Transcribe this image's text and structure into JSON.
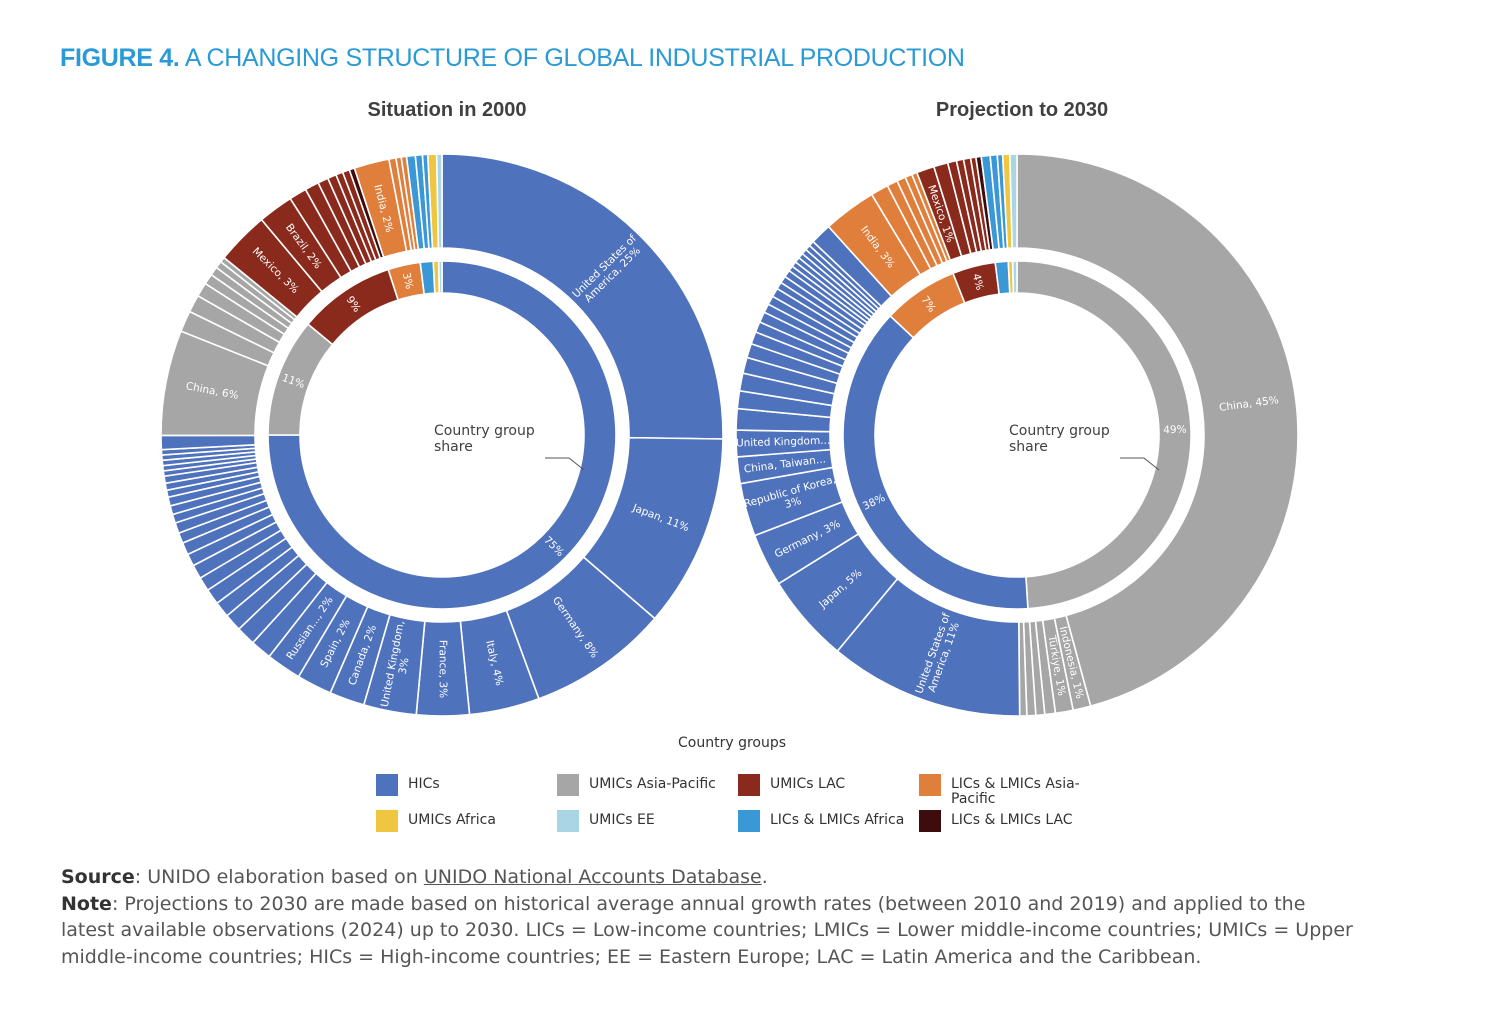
{
  "figure": {
    "label": "FIGURE 4.",
    "title": "A CHANGING STRUCTURE OF GLOBAL INDUSTRIAL PRODUCTION"
  },
  "colors": {
    "HICs": "#4f72bd",
    "UMICs Asia-Pacific": "#a6a6a6",
    "UMICs LAC": "#8a2a1c",
    "LICs & LMICs Asia-Pacific": "#e07f3c",
    "UMICs Africa": "#f0c640",
    "UMICs EE": "#a9d5e5",
    "LICs & LMICs Africa": "#3b98d6",
    "LICs & LMICs LAC": "#3d0d0d"
  },
  "chart_data": [
    {
      "type": "pie",
      "subtype": "nested-donut",
      "title": "Situation in 2000",
      "center_label": "Country group share",
      "inner_ring": [
        {
          "group": "HICs",
          "value": 75,
          "label": "75%"
        },
        {
          "group": "UMICs Asia-Pacific",
          "value": 11,
          "label": "11%"
        },
        {
          "group": "UMICs LAC",
          "value": 9,
          "label": "9%"
        },
        {
          "group": "LICs & LMICs Asia-Pacific",
          "value": 3,
          "label": "3%"
        },
        {
          "group": "LICs & LMICs Africa",
          "value": 1.2,
          "label": ""
        },
        {
          "group": "UMICs Africa",
          "value": 0.5,
          "label": ""
        },
        {
          "group": "UMICs EE",
          "value": 0.3,
          "label": ""
        }
      ],
      "outer_ring": [
        {
          "group": "HICs",
          "value": 25,
          "label": "United States of America, 25%"
        },
        {
          "group": "HICs",
          "value": 11,
          "label": "Japan, 11%"
        },
        {
          "group": "HICs",
          "value": 8,
          "label": "Germany, 8%"
        },
        {
          "group": "HICs",
          "value": 4,
          "label": "Italy, 4%"
        },
        {
          "group": "HICs",
          "value": 3,
          "label": "France, 3%"
        },
        {
          "group": "HICs",
          "value": 3,
          "label": "United Kingdom, 3%"
        },
        {
          "group": "HICs",
          "value": 2,
          "label": "Canada, 2%"
        },
        {
          "group": "HICs",
          "value": 2,
          "label": "Spain, 2%"
        },
        {
          "group": "HICs",
          "value": 2,
          "label": "Russian..., 2%"
        },
        {
          "group": "HICs",
          "value": 1.2,
          "label": ""
        },
        {
          "group": "HICs",
          "value": 1.1,
          "label": ""
        },
        {
          "group": "HICs",
          "value": 1.0,
          "label": ""
        },
        {
          "group": "HICs",
          "value": 0.9,
          "label": ""
        },
        {
          "group": "HICs",
          "value": 0.9,
          "label": ""
        },
        {
          "group": "HICs",
          "value": 0.8,
          "label": ""
        },
        {
          "group": "HICs",
          "value": 0.8,
          "label": ""
        },
        {
          "group": "HICs",
          "value": 0.7,
          "label": ""
        },
        {
          "group": "HICs",
          "value": 0.7,
          "label": ""
        },
        {
          "group": "HICs",
          "value": 0.6,
          "label": ""
        },
        {
          "group": "HICs",
          "value": 0.6,
          "label": ""
        },
        {
          "group": "HICs",
          "value": 0.5,
          "label": ""
        },
        {
          "group": "HICs",
          "value": 0.5,
          "label": ""
        },
        {
          "group": "HICs",
          "value": 0.5,
          "label": ""
        },
        {
          "group": "HICs",
          "value": 0.4,
          "label": ""
        },
        {
          "group": "HICs",
          "value": 0.4,
          "label": ""
        },
        {
          "group": "HICs",
          "value": 0.4,
          "label": ""
        },
        {
          "group": "HICs",
          "value": 0.3,
          "label": ""
        },
        {
          "group": "HICs",
          "value": 0.3,
          "label": ""
        },
        {
          "group": "HICs",
          "value": 0.3,
          "label": ""
        },
        {
          "group": "HICs",
          "value": 0.3,
          "label": ""
        },
        {
          "group": "HICs",
          "value": 0.3,
          "label": ""
        },
        {
          "group": "HICs",
          "value": 0.8,
          "label": ""
        },
        {
          "group": "UMICs Asia-Pacific",
          "value": 6,
          "label": "China, 6%"
        },
        {
          "group": "UMICs Asia-Pacific",
          "value": 1.2,
          "label": ""
        },
        {
          "group": "UMICs Asia-Pacific",
          "value": 1.0,
          "label": ""
        },
        {
          "group": "UMICs Asia-Pacific",
          "value": 0.8,
          "label": ""
        },
        {
          "group": "UMICs Asia-Pacific",
          "value": 0.6,
          "label": ""
        },
        {
          "group": "UMICs Asia-Pacific",
          "value": 0.5,
          "label": ""
        },
        {
          "group": "UMICs Asia-Pacific",
          "value": 0.4,
          "label": ""
        },
        {
          "group": "UMICs Asia-Pacific",
          "value": 0.3,
          "label": ""
        },
        {
          "group": "UMICs LAC",
          "value": 3,
          "label": "Mexico, 3%"
        },
        {
          "group": "UMICs LAC",
          "value": 2,
          "label": "Brazil, 2%"
        },
        {
          "group": "UMICs LAC",
          "value": 1.0,
          "label": ""
        },
        {
          "group": "UMICs LAC",
          "value": 0.8,
          "label": ""
        },
        {
          "group": "UMICs LAC",
          "value": 0.6,
          "label": ""
        },
        {
          "group": "UMICs LAC",
          "value": 0.5,
          "label": ""
        },
        {
          "group": "UMICs LAC",
          "value": 0.4,
          "label": ""
        },
        {
          "group": "UMICs LAC",
          "value": 0.4,
          "label": ""
        },
        {
          "group": "LICs & LMICs LAC",
          "value": 0.3,
          "label": ""
        },
        {
          "group": "LICs & LMICs Asia-Pacific",
          "value": 2,
          "label": "India, 2%"
        },
        {
          "group": "LICs & LMICs Asia-Pacific",
          "value": 0.4,
          "label": ""
        },
        {
          "group": "LICs & LMICs Asia-Pacific",
          "value": 0.3,
          "label": ""
        },
        {
          "group": "LICs & LMICs Asia-Pacific",
          "value": 0.3,
          "label": ""
        },
        {
          "group": "LICs & LMICs Africa",
          "value": 0.5,
          "label": ""
        },
        {
          "group": "LICs & LMICs Africa",
          "value": 0.4,
          "label": ""
        },
        {
          "group": "LICs & LMICs Africa",
          "value": 0.3,
          "label": ""
        },
        {
          "group": "UMICs Africa",
          "value": 0.5,
          "label": ""
        },
        {
          "group": "UMICs EE",
          "value": 0.3,
          "label": ""
        }
      ]
    },
    {
      "type": "pie",
      "subtype": "nested-donut",
      "title": "Projection to 2030",
      "center_label": "Country group share",
      "inner_ring": [
        {
          "group": "UMICs Asia-Pacific",
          "value": 49,
          "label": "49%"
        },
        {
          "group": "HICs",
          "value": 38,
          "label": "38%"
        },
        {
          "group": "LICs & LMICs Asia-Pacific",
          "value": 7,
          "label": "7%"
        },
        {
          "group": "UMICs LAC",
          "value": 4,
          "label": "4%"
        },
        {
          "group": "LICs & LMICs Africa",
          "value": 1.2,
          "label": ""
        },
        {
          "group": "UMICs Africa",
          "value": 0.4,
          "label": ""
        },
        {
          "group": "UMICs EE",
          "value": 0.4,
          "label": ""
        }
      ],
      "outer_ring": [
        {
          "group": "UMICs Asia-Pacific",
          "value": 45,
          "label": "China, 45%"
        },
        {
          "group": "UMICs Asia-Pacific",
          "value": 1,
          "label": "Indonesia, 1%"
        },
        {
          "group": "UMICs Asia-Pacific",
          "value": 1,
          "label": "Türkiye, 1%"
        },
        {
          "group": "UMICs Asia-Pacific",
          "value": 0.6,
          "label": ""
        },
        {
          "group": "UMICs Asia-Pacific",
          "value": 0.5,
          "label": ""
        },
        {
          "group": "UMICs Asia-Pacific",
          "value": 0.5,
          "label": ""
        },
        {
          "group": "UMICs Asia-Pacific",
          "value": 0.4,
          "label": ""
        },
        {
          "group": "HICs",
          "value": 11,
          "label": "United States of America, 11%"
        },
        {
          "group": "HICs",
          "value": 5,
          "label": "Japan, 5%"
        },
        {
          "group": "HICs",
          "value": 3,
          "label": "Germany, 3%"
        },
        {
          "group": "HICs",
          "value": 3,
          "label": "Republic of Korea, 3%"
        },
        {
          "group": "HICs",
          "value": 1.5,
          "label": "China, Taiwan..."
        },
        {
          "group": "HICs",
          "value": 1.5,
          "label": "United Kingdom..."
        },
        {
          "group": "HICs",
          "value": 1.2,
          "label": ""
        },
        {
          "group": "HICs",
          "value": 1.0,
          "label": ""
        },
        {
          "group": "HICs",
          "value": 1.0,
          "label": ""
        },
        {
          "group": "HICs",
          "value": 0.9,
          "label": ""
        },
        {
          "group": "HICs",
          "value": 0.8,
          "label": ""
        },
        {
          "group": "HICs",
          "value": 0.7,
          "label": ""
        },
        {
          "group": "HICs",
          "value": 0.6,
          "label": ""
        },
        {
          "group": "HICs",
          "value": 0.6,
          "label": ""
        },
        {
          "group": "HICs",
          "value": 0.5,
          "label": ""
        },
        {
          "group": "HICs",
          "value": 0.5,
          "label": ""
        },
        {
          "group": "HICs",
          "value": 0.5,
          "label": ""
        },
        {
          "group": "HICs",
          "value": 0.4,
          "label": ""
        },
        {
          "group": "HICs",
          "value": 0.4,
          "label": ""
        },
        {
          "group": "HICs",
          "value": 0.4,
          "label": ""
        },
        {
          "group": "HICs",
          "value": 0.3,
          "label": ""
        },
        {
          "group": "HICs",
          "value": 0.3,
          "label": ""
        },
        {
          "group": "HICs",
          "value": 0.3,
          "label": ""
        },
        {
          "group": "HICs",
          "value": 0.3,
          "label": ""
        },
        {
          "group": "HICs",
          "value": 0.3,
          "label": ""
        },
        {
          "group": "HICs",
          "value": 0.3,
          "label": ""
        },
        {
          "group": "HICs",
          "value": 0.3,
          "label": ""
        },
        {
          "group": "HICs",
          "value": 1.2,
          "label": ""
        },
        {
          "group": "LICs & LMICs Asia-Pacific",
          "value": 3,
          "label": "India, 3%"
        },
        {
          "group": "LICs & LMICs Asia-Pacific",
          "value": 1.0,
          "label": ""
        },
        {
          "group": "LICs & LMICs Asia-Pacific",
          "value": 0.6,
          "label": ""
        },
        {
          "group": "LICs & LMICs Asia-Pacific",
          "value": 0.5,
          "label": ""
        },
        {
          "group": "LICs & LMICs Asia-Pacific",
          "value": 0.4,
          "label": ""
        },
        {
          "group": "LICs & LMICs Asia-Pacific",
          "value": 0.3,
          "label": ""
        },
        {
          "group": "UMICs LAC",
          "value": 1,
          "label": "Mexico, 1%"
        },
        {
          "group": "UMICs LAC",
          "value": 0.8,
          "label": ""
        },
        {
          "group": "UMICs LAC",
          "value": 0.5,
          "label": ""
        },
        {
          "group": "UMICs LAC",
          "value": 0.4,
          "label": ""
        },
        {
          "group": "UMICs LAC",
          "value": 0.4,
          "label": ""
        },
        {
          "group": "UMICs LAC",
          "value": 0.3,
          "label": ""
        },
        {
          "group": "LICs & LMICs LAC",
          "value": 0.3,
          "label": ""
        },
        {
          "group": "LICs & LMICs Africa",
          "value": 0.5,
          "label": ""
        },
        {
          "group": "LICs & LMICs Africa",
          "value": 0.4,
          "label": ""
        },
        {
          "group": "LICs & LMICs Africa",
          "value": 0.3,
          "label": ""
        },
        {
          "group": "UMICs Africa",
          "value": 0.4,
          "label": ""
        },
        {
          "group": "UMICs EE",
          "value": 0.4,
          "label": ""
        }
      ]
    }
  ],
  "legend": {
    "title": "Country groups",
    "items": [
      {
        "label": "HICs",
        "color": "#4f72bd"
      },
      {
        "label": "UMICs Asia-Pacific",
        "color": "#a6a6a6"
      },
      {
        "label": "UMICs LAC",
        "color": "#8a2a1c"
      },
      {
        "label": "LICs & LMICs Asia-Pacific",
        "color": "#e07f3c"
      },
      {
        "label": "UMICs Africa",
        "color": "#f0c640"
      },
      {
        "label": "UMICs EE",
        "color": "#a9d5e5"
      },
      {
        "label": "LICs & LMICs Africa",
        "color": "#3b98d6"
      },
      {
        "label": "LICs & LMICs LAC",
        "color": "#3d0d0d"
      }
    ]
  },
  "notes": {
    "source_label": "Source",
    "source_text": ": UNIDO elaboration based on ",
    "source_link": "UNIDO National Accounts Database",
    "source_end": ".",
    "note_label": "Note",
    "note_text": ": Projections to 2030 are made based on historical average annual growth rates (between 2010 and 2019) and applied to the latest available observations (2024) up to 2030. LICs = Low-income countries; LMICs = Lower middle-income countries; UMICs = Upper middle-income countries; HICs = High-income countries; EE = Eastern Europe; LAC = Latin America and the Caribbean."
  }
}
